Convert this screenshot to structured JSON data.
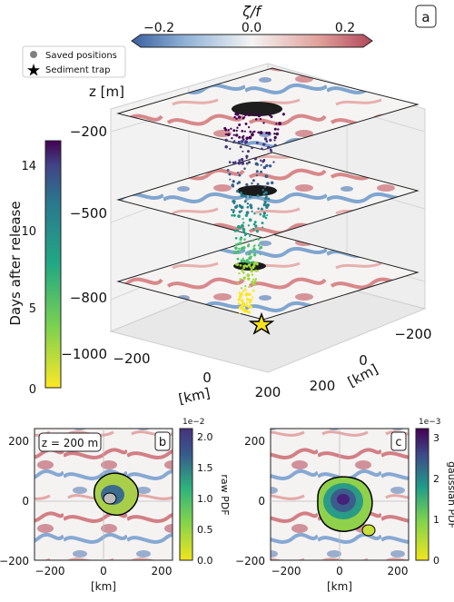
{
  "panel_labels": {
    "a": "a",
    "b": "b",
    "c": "c"
  },
  "colorbar_top": {
    "label": "ζ/f",
    "ticks": [
      "−0.2",
      "0.0",
      "0.2"
    ],
    "range": [
      -0.25,
      0.25
    ],
    "colormap": "red-blue diverging"
  },
  "legend": {
    "items": [
      {
        "label": "Saved positions",
        "marker": "circle",
        "color": "#808080"
      },
      {
        "label": "Sediment trap",
        "marker": "star",
        "color": "#000000"
      }
    ]
  },
  "colorbar_days": {
    "label": "Days after release",
    "ticks": [
      "0",
      "5",
      "10",
      "14"
    ],
    "range": [
      0,
      15
    ],
    "colormap": "viridis (reversed)"
  },
  "panel_a": {
    "z_axis_label": "z [m]",
    "z_ticks": [
      "−200",
      "−500",
      "−800",
      "−1000"
    ],
    "x_ticks": [
      "−200",
      "0",
      "200"
    ],
    "x_label": "[km]",
    "y_ticks": [
      "−200",
      "0",
      "200"
    ],
    "y_label": "[km]"
  },
  "panel_b": {
    "annotation": "z = 200 m",
    "x_ticks": [
      "−200",
      "0",
      "200"
    ],
    "y_ticks": [
      "200",
      "0",
      "−200"
    ],
    "x_label": "[km]",
    "colorbar": {
      "label": "raw PDF",
      "exponent": "1e−2",
      "ticks": [
        "0.0",
        "0.5",
        "1.0",
        "1.5",
        "2.0"
      ]
    }
  },
  "panel_c": {
    "x_ticks": [
      "−200",
      "0",
      "200"
    ],
    "y_ticks": [
      "200",
      "0",
      "−200"
    ],
    "x_label": "[km]",
    "colorbar": {
      "label": "gaussian PDF",
      "exponent": "1e−3",
      "ticks": [
        "0",
        "1",
        "2",
        "3"
      ]
    }
  },
  "chart_data": [
    {
      "type": "scatter",
      "panel": "a",
      "layers_depth_m": [
        -200,
        -500,
        -800
      ],
      "trap": {
        "x_km": 0,
        "y_km": 0,
        "z_m": -1000
      },
      "x_range_km": [
        -250,
        250
      ],
      "y_range_km": [
        -250,
        250
      ],
      "z_range_m": [
        -1000,
        -100
      ]
    },
    {
      "type": "heatmap",
      "panel": "b",
      "x_range_km": [
        -250,
        250
      ],
      "y_range_km": [
        -250,
        250
      ],
      "pdf_range": [
        0,
        2.1
      ]
    },
    {
      "type": "heatmap",
      "panel": "c",
      "x_range_km": [
        -250,
        250
      ],
      "y_range_km": [
        -250,
        250
      ],
      "pdf_range": [
        0,
        3.2
      ]
    }
  ]
}
